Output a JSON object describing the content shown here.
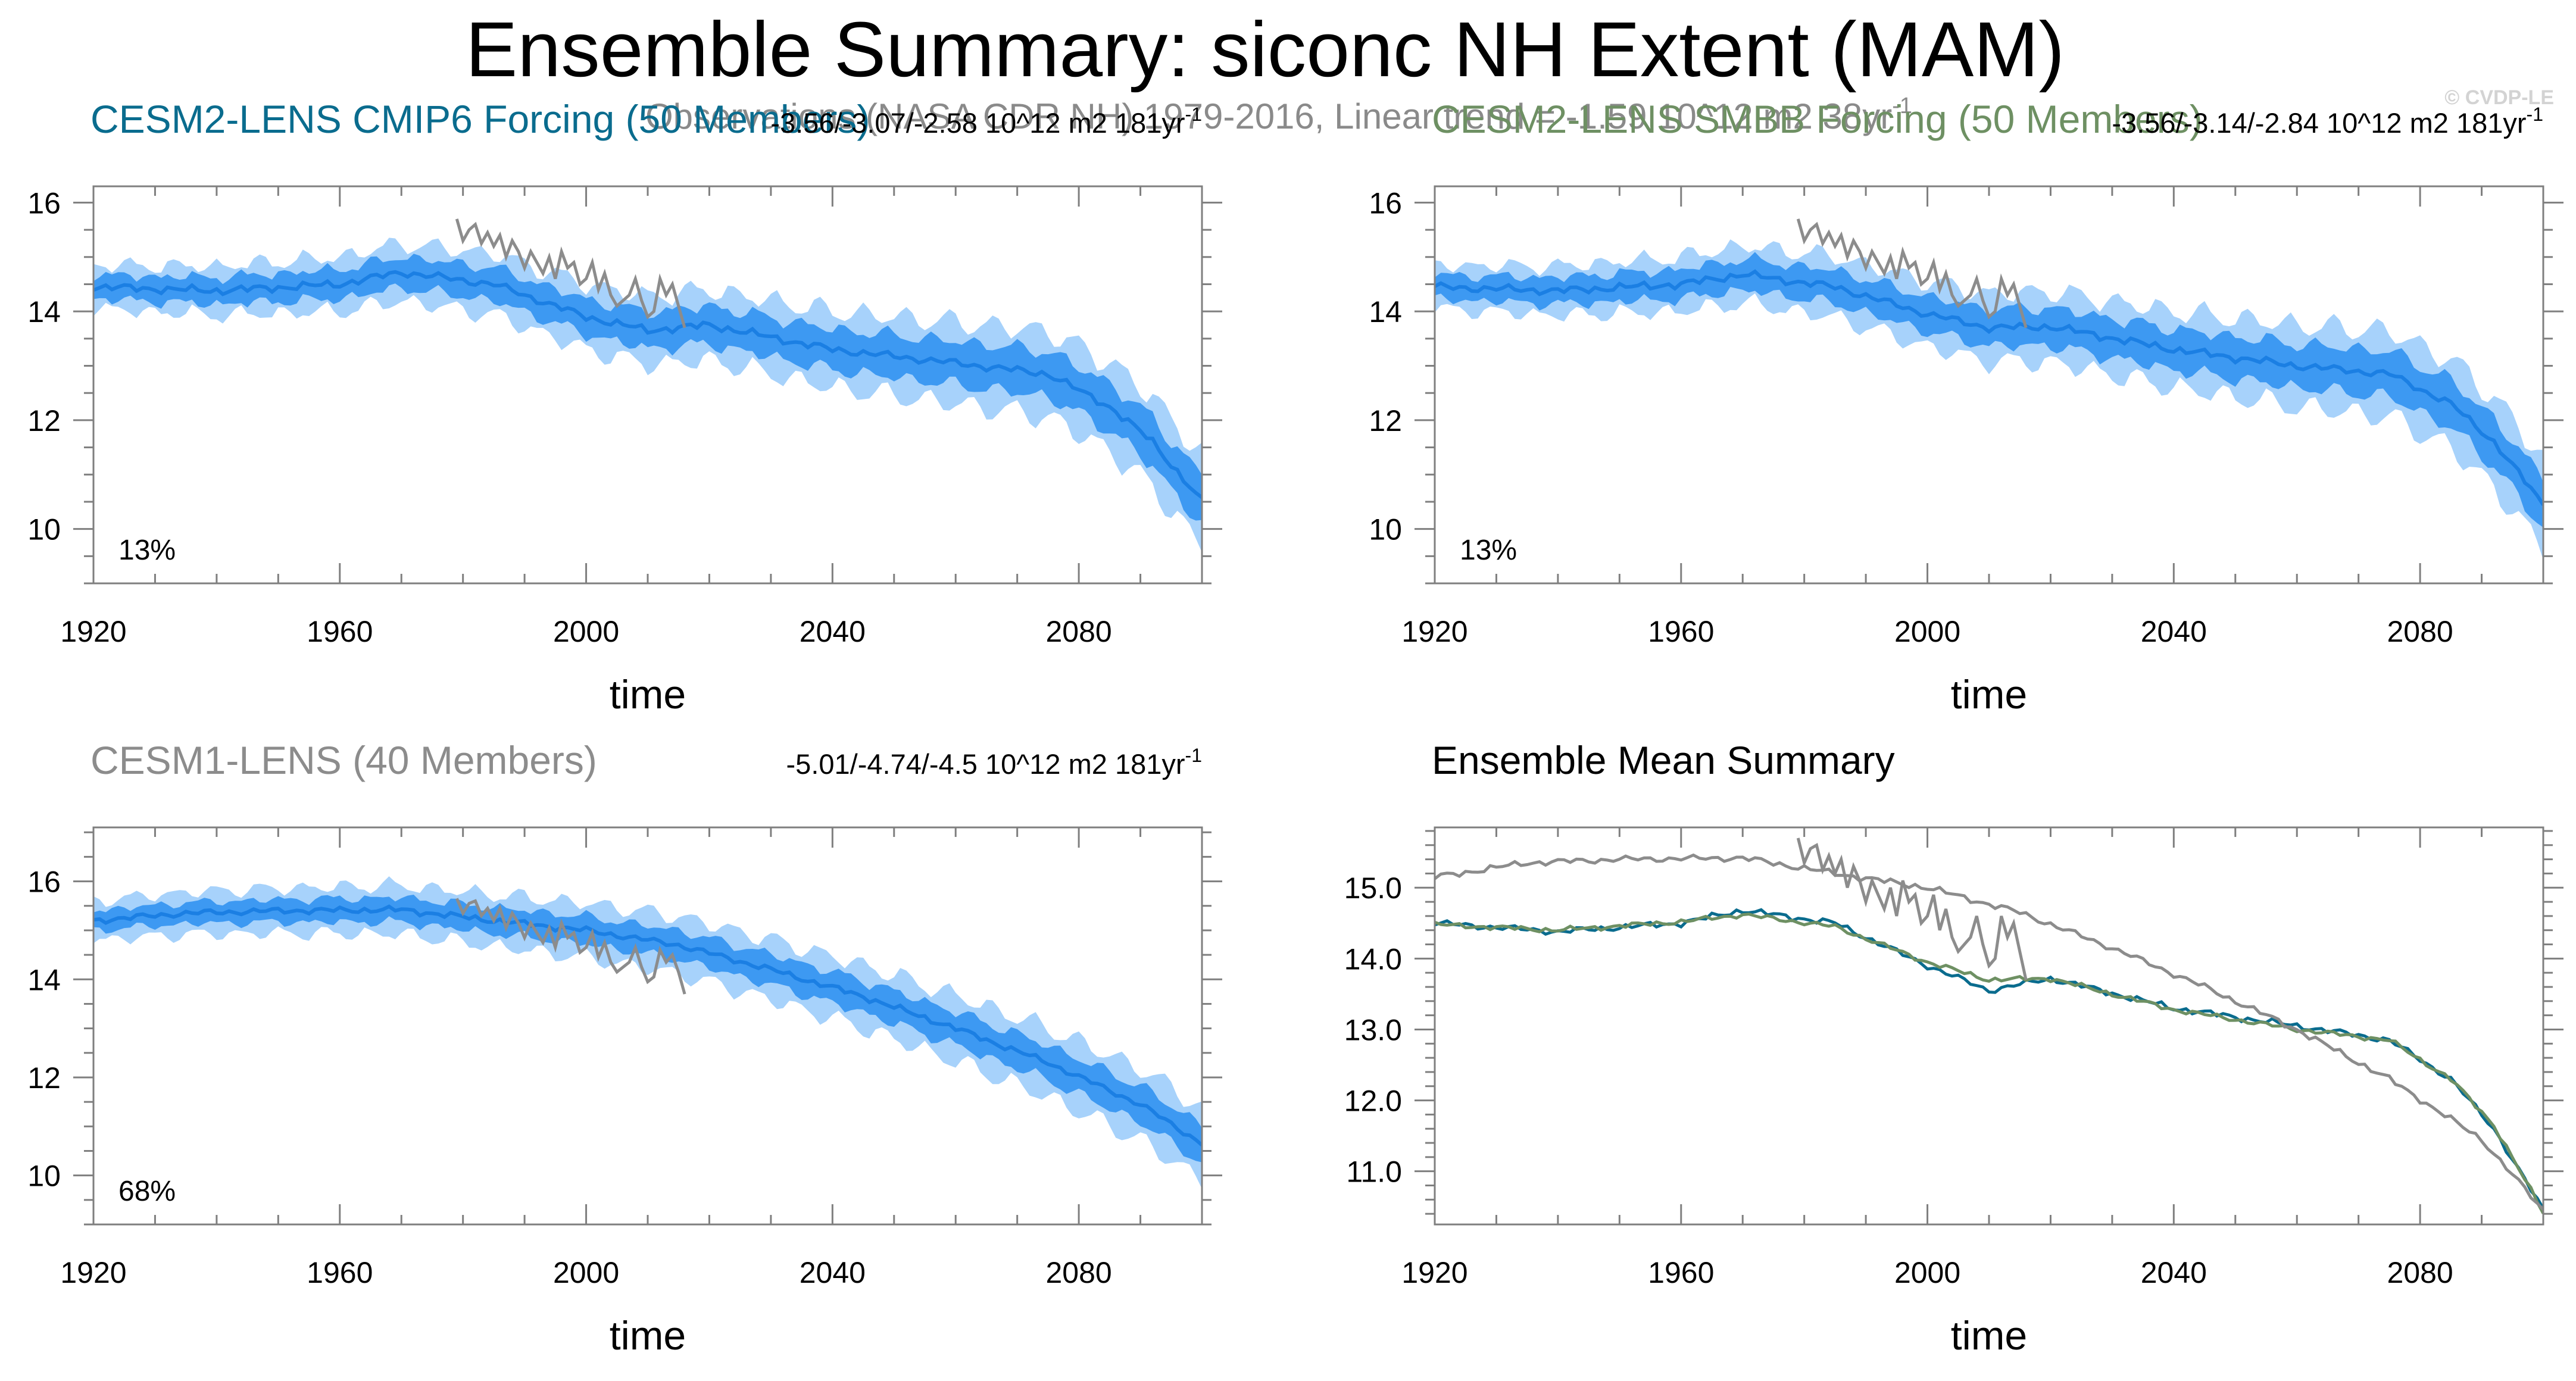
{
  "figure": {
    "title": "Ensemble Summary: siconc NH Extent (MAM)",
    "observations_label": "Observations (NASA CDR NH) 1979-2016, Linear trend = -1.59 10^12 m2 38yr",
    "observations_label_sup": "-1",
    "credit": "© CVDP-LE"
  },
  "colors": {
    "band_outer": "#a7d2fb",
    "band_inner": "#3d99f2",
    "ens_mean": "#1b7fe3",
    "obs": "#8c8c8c",
    "cesm2_cmip6": "#0a6c8e",
    "cesm2_smbb": "#6e9063",
    "cesm1": "#8c8c8c",
    "summary_title": "#000000"
  },
  "chart_data": [
    {
      "id": "cesm2_cmip6",
      "type": "area",
      "title": "CESM2-LENS CMIP6 Forcing (50 Members)",
      "title_color": "#0a6c8e",
      "trend": "-3.56/-3.07/-2.58 10^12 m2 181yr",
      "trend_sup": "-1",
      "percent": "13%",
      "xlabel": "time",
      "ylabel": "",
      "xlim": [
        1920,
        2100
      ],
      "ylim": [
        9,
        16.3
      ],
      "xticks": [
        1920,
        1960,
        2000,
        2040,
        2080
      ],
      "yticks": [
        10,
        12,
        14,
        16
      ],
      "ytick_labels": [
        "10",
        "12",
        "14",
        "16"
      ],
      "mean_knots": [
        [
          1920,
          14.45
        ],
        [
          1940,
          14.38
        ],
        [
          1960,
          14.5
        ],
        [
          1970,
          14.72
        ],
        [
          1985,
          14.5
        ],
        [
          2000,
          13.9
        ],
        [
          2010,
          13.65
        ],
        [
          2020,
          13.75
        ],
        [
          2040,
          13.3
        ],
        [
          2060,
          13.05
        ],
        [
          2075,
          12.85
        ],
        [
          2085,
          12.25
        ],
        [
          2092,
          11.6
        ],
        [
          2100,
          10.5
        ]
      ],
      "inner_halfwidth": [
        [
          1920,
          0.22
        ],
        [
          2100,
          0.45
        ]
      ],
      "outer_halfwidth": [
        [
          1920,
          0.4
        ],
        [
          2100,
          0.85
        ]
      ],
      "ens_wiggle": 0.08,
      "observations": {
        "years": [
          1979,
          1980,
          1981,
          1982,
          1983,
          1984,
          1985,
          1986,
          1987,
          1988,
          1989,
          1990,
          1991,
          1992,
          1993,
          1994,
          1995,
          1996,
          1997,
          1998,
          1999,
          2000,
          2001,
          2002,
          2003,
          2004,
          2005,
          2006,
          2007,
          2008,
          2009,
          2010,
          2011,
          2012,
          2013,
          2014,
          2015,
          2016
        ],
        "values": [
          15.7,
          15.3,
          15.5,
          15.6,
          15.25,
          15.45,
          15.2,
          15.4,
          15.0,
          15.3,
          15.1,
          14.8,
          15.1,
          14.9,
          14.7,
          15.0,
          14.6,
          15.1,
          14.8,
          14.9,
          14.5,
          14.6,
          14.9,
          14.4,
          14.7,
          14.3,
          14.1,
          14.2,
          14.3,
          14.6,
          14.2,
          13.9,
          14.0,
          14.6,
          14.3,
          14.5,
          14.1,
          13.7
        ]
      }
    },
    {
      "id": "cesm2_smbb",
      "type": "area",
      "title": "CESM2-LENS SMBB Forcing (50 Members)",
      "title_color": "#6e9063",
      "trend": "-3.56/-3.14/-2.84 10^12 m2 181yr",
      "trend_sup": "-1",
      "percent": "13%",
      "xlabel": "time",
      "ylabel": "",
      "xlim": [
        1920,
        2100
      ],
      "ylim": [
        9,
        16.3
      ],
      "xticks": [
        1920,
        1960,
        2000,
        2040,
        2080
      ],
      "yticks": [
        10,
        12,
        14,
        16
      ],
      "ytick_labels": [
        "10",
        "12",
        "14",
        "16"
      ],
      "mean_knots": [
        [
          1920,
          14.45
        ],
        [
          1940,
          14.38
        ],
        [
          1960,
          14.5
        ],
        [
          1970,
          14.68
        ],
        [
          1985,
          14.45
        ],
        [
          2000,
          13.95
        ],
        [
          2010,
          13.7
        ],
        [
          2020,
          13.72
        ],
        [
          2040,
          13.3
        ],
        [
          2060,
          13.0
        ],
        [
          2075,
          12.85
        ],
        [
          2085,
          12.3
        ],
        [
          2092,
          11.6
        ],
        [
          2100,
          10.45
        ]
      ],
      "inner_halfwidth": [
        [
          1920,
          0.22
        ],
        [
          2100,
          0.45
        ]
      ],
      "outer_halfwidth": [
        [
          1920,
          0.4
        ],
        [
          2100,
          0.85
        ]
      ],
      "ens_wiggle": 0.08,
      "observations": {
        "years": [
          1979,
          1980,
          1981,
          1982,
          1983,
          1984,
          1985,
          1986,
          1987,
          1988,
          1989,
          1990,
          1991,
          1992,
          1993,
          1994,
          1995,
          1996,
          1997,
          1998,
          1999,
          2000,
          2001,
          2002,
          2003,
          2004,
          2005,
          2006,
          2007,
          2008,
          2009,
          2010,
          2011,
          2012,
          2013,
          2014,
          2015,
          2016
        ],
        "values": [
          15.7,
          15.3,
          15.5,
          15.6,
          15.25,
          15.45,
          15.2,
          15.4,
          15.0,
          15.3,
          15.1,
          14.8,
          15.1,
          14.9,
          14.7,
          15.0,
          14.6,
          15.1,
          14.8,
          14.9,
          14.5,
          14.6,
          14.9,
          14.4,
          14.7,
          14.3,
          14.1,
          14.2,
          14.3,
          14.6,
          14.2,
          13.9,
          14.0,
          14.6,
          14.3,
          14.5,
          14.1,
          13.7
        ]
      }
    },
    {
      "id": "cesm1",
      "type": "area",
      "title": "CESM1-LENS (40 Members)",
      "title_color": "#8c8c8c",
      "trend": "-5.01/-4.74/-4.5 10^12 m2 181yr",
      "trend_sup": "-1",
      "percent": "68%",
      "xlabel": "time",
      "ylabel": "",
      "xlim": [
        1920,
        2100
      ],
      "ylim": [
        9,
        17.1
      ],
      "xticks": [
        1920,
        1960,
        2000,
        2040,
        2080
      ],
      "yticks": [
        10,
        12,
        14,
        16
      ],
      "ytick_labels": [
        "10",
        "12",
        "14",
        "16"
      ],
      "mean_knots": [
        [
          1920,
          15.2
        ],
        [
          1935,
          15.35
        ],
        [
          1950,
          15.4
        ],
        [
          1970,
          15.42
        ],
        [
          1985,
          15.2
        ],
        [
          2000,
          15.0
        ],
        [
          2015,
          14.7
        ],
        [
          2030,
          14.2
        ],
        [
          2045,
          13.65
        ],
        [
          2060,
          13.0
        ],
        [
          2075,
          12.3
        ],
        [
          2090,
          11.45
        ],
        [
          2100,
          10.65
        ]
      ],
      "inner_halfwidth": [
        [
          1920,
          0.2
        ],
        [
          2100,
          0.38
        ]
      ],
      "outer_halfwidth": [
        [
          1920,
          0.4
        ],
        [
          2100,
          0.75
        ]
      ],
      "ens_wiggle": 0.07,
      "observations": {
        "years": [
          1979,
          1980,
          1981,
          1982,
          1983,
          1984,
          1985,
          1986,
          1987,
          1988,
          1989,
          1990,
          1991,
          1992,
          1993,
          1994,
          1995,
          1996,
          1997,
          1998,
          1999,
          2000,
          2001,
          2002,
          2003,
          2004,
          2005,
          2006,
          2007,
          2008,
          2009,
          2010,
          2011,
          2012,
          2013,
          2014,
          2015,
          2016
        ],
        "values": [
          15.65,
          15.35,
          15.55,
          15.6,
          15.3,
          15.45,
          15.2,
          15.45,
          15.05,
          15.35,
          15.15,
          14.85,
          15.15,
          14.95,
          14.75,
          15.05,
          14.65,
          15.15,
          14.85,
          14.95,
          14.55,
          14.65,
          14.95,
          14.45,
          14.75,
          14.35,
          14.15,
          14.25,
          14.35,
          14.65,
          14.25,
          13.95,
          14.05,
          14.6,
          14.35,
          14.5,
          14.15,
          13.7
        ]
      }
    },
    {
      "id": "summary",
      "type": "line",
      "title": "Ensemble Mean Summary",
      "title_color": "#000000",
      "xlabel": "time",
      "ylabel": "",
      "xlim": [
        1920,
        2100
      ],
      "ylim": [
        10.25,
        15.85
      ],
      "xticks": [
        1920,
        1960,
        2000,
        2040,
        2080
      ],
      "yticks": [
        11,
        12,
        13,
        14,
        15
      ],
      "ytick_labels": [
        "11.0",
        "12.0",
        "13.0",
        "14.0",
        "15.0"
      ],
      "series": [
        {
          "name": "CESM2-LENS CMIP6 Forcing",
          "color": "#0a6c8e",
          "knots": [
            [
              1920,
              14.5
            ],
            [
              1940,
              14.38
            ],
            [
              1960,
              14.5
            ],
            [
              1970,
              14.68
            ],
            [
              1985,
              14.5
            ],
            [
              2000,
              13.9
            ],
            [
              2010,
              13.55
            ],
            [
              2020,
              13.72
            ],
            [
              2040,
              13.3
            ],
            [
              2060,
              13.05
            ],
            [
              2075,
              12.85
            ],
            [
              2085,
              12.3
            ],
            [
              2092,
              11.6
            ],
            [
              2100,
              10.45
            ]
          ],
          "wiggle": 0.05
        },
        {
          "name": "CESM2-LENS SMBB Forcing",
          "color": "#6e9063",
          "knots": [
            [
              1920,
              14.48
            ],
            [
              1940,
              14.4
            ],
            [
              1960,
              14.52
            ],
            [
              1970,
              14.62
            ],
            [
              1985,
              14.45
            ],
            [
              2000,
              13.95
            ],
            [
              2010,
              13.7
            ],
            [
              2020,
              13.72
            ],
            [
              2040,
              13.28
            ],
            [
              2060,
              13.0
            ],
            [
              2075,
              12.85
            ],
            [
              2085,
              12.3
            ],
            [
              2092,
              11.65
            ],
            [
              2100,
              10.42
            ]
          ],
          "wiggle": 0.04
        },
        {
          "name": "CESM1-LENS",
          "color": "#8c8c8c",
          "knots": [
            [
              1920,
              15.15
            ],
            [
              1935,
              15.35
            ],
            [
              1950,
              15.4
            ],
            [
              1970,
              15.42
            ],
            [
              1985,
              15.2
            ],
            [
              2000,
              15.0
            ],
            [
              2015,
              14.65
            ],
            [
              2030,
              14.15
            ],
            [
              2045,
              13.6
            ],
            [
              2060,
              13.0
            ],
            [
              2075,
              12.3
            ],
            [
              2090,
              11.45
            ],
            [
              2100,
              10.45
            ]
          ],
          "wiggle": 0.05
        }
      ],
      "observations": {
        "years": [
          1979,
          1980,
          1981,
          1982,
          1983,
          1984,
          1985,
          1986,
          1987,
          1988,
          1989,
          1990,
          1991,
          1992,
          1993,
          1994,
          1995,
          1996,
          1997,
          1998,
          1999,
          2000,
          2001,
          2002,
          2003,
          2004,
          2005,
          2006,
          2007,
          2008,
          2009,
          2010,
          2011,
          2012,
          2013,
          2014,
          2015,
          2016
        ],
        "values": [
          15.7,
          15.35,
          15.55,
          15.6,
          15.25,
          15.45,
          15.2,
          15.4,
          15.0,
          15.3,
          15.1,
          14.8,
          15.1,
          14.9,
          14.7,
          15.0,
          14.6,
          15.1,
          14.8,
          14.9,
          14.5,
          14.6,
          14.9,
          14.4,
          14.7,
          14.3,
          14.1,
          14.2,
          14.3,
          14.6,
          14.2,
          13.9,
          14.0,
          14.6,
          14.3,
          14.5,
          14.1,
          13.7
        ]
      }
    }
  ]
}
